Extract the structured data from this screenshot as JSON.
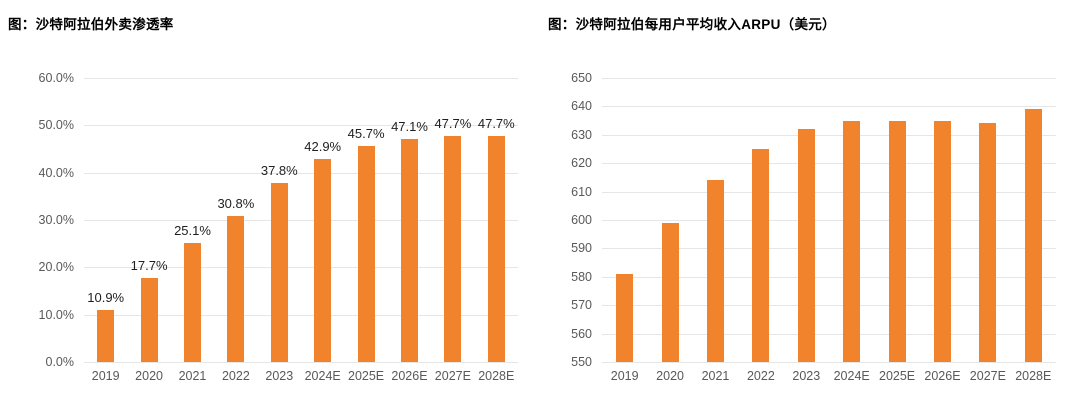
{
  "colors": {
    "bar": "#F0832C",
    "gridline": "#E6E6E6",
    "axis_text": "#595959",
    "data_label_text": "#1F1F1F",
    "title_text": "#000000",
    "background": "#FFFFFF"
  },
  "chart_data": [
    {
      "id": "delivery-penetration",
      "type": "bar",
      "title": "图：沙特阿拉伯外卖渗透率",
      "xlabel": "",
      "ylabel": "",
      "legend": "none",
      "grid": true,
      "categories": [
        "2019",
        "2020",
        "2021",
        "2022",
        "2023",
        "2024E",
        "2025E",
        "2026E",
        "2027E",
        "2028E"
      ],
      "values": [
        10.9,
        17.7,
        25.1,
        30.8,
        37.8,
        42.9,
        45.7,
        47.1,
        47.7,
        47.7
      ],
      "data_labels": [
        "10.9%",
        "17.7%",
        "25.1%",
        "30.8%",
        "37.8%",
        "42.9%",
        "45.7%",
        "47.1%",
        "47.7%",
        "47.7%"
      ],
      "ylim": [
        0,
        60
      ],
      "ytick_step": 10,
      "ytick_labels": [
        "0.0%",
        "10.0%",
        "20.0%",
        "30.0%",
        "40.0%",
        "50.0%",
        "60.0%"
      ]
    },
    {
      "id": "arpu",
      "type": "bar",
      "title": "图：沙特阿拉伯每用户平均收入ARPU（美元）",
      "xlabel": "",
      "ylabel": "",
      "legend": "none",
      "grid": true,
      "categories": [
        "2019",
        "2020",
        "2021",
        "2022",
        "2023",
        "2024E",
        "2025E",
        "2026E",
        "2027E",
        "2028E"
      ],
      "values": [
        581,
        599,
        614,
        625,
        632,
        635,
        635,
        635,
        634,
        639
      ],
      "data_labels": null,
      "ylim": [
        550,
        650
      ],
      "ytick_step": 10,
      "ytick_labels": [
        "550",
        "560",
        "570",
        "580",
        "590",
        "600",
        "610",
        "620",
        "630",
        "640",
        "650"
      ]
    }
  ]
}
